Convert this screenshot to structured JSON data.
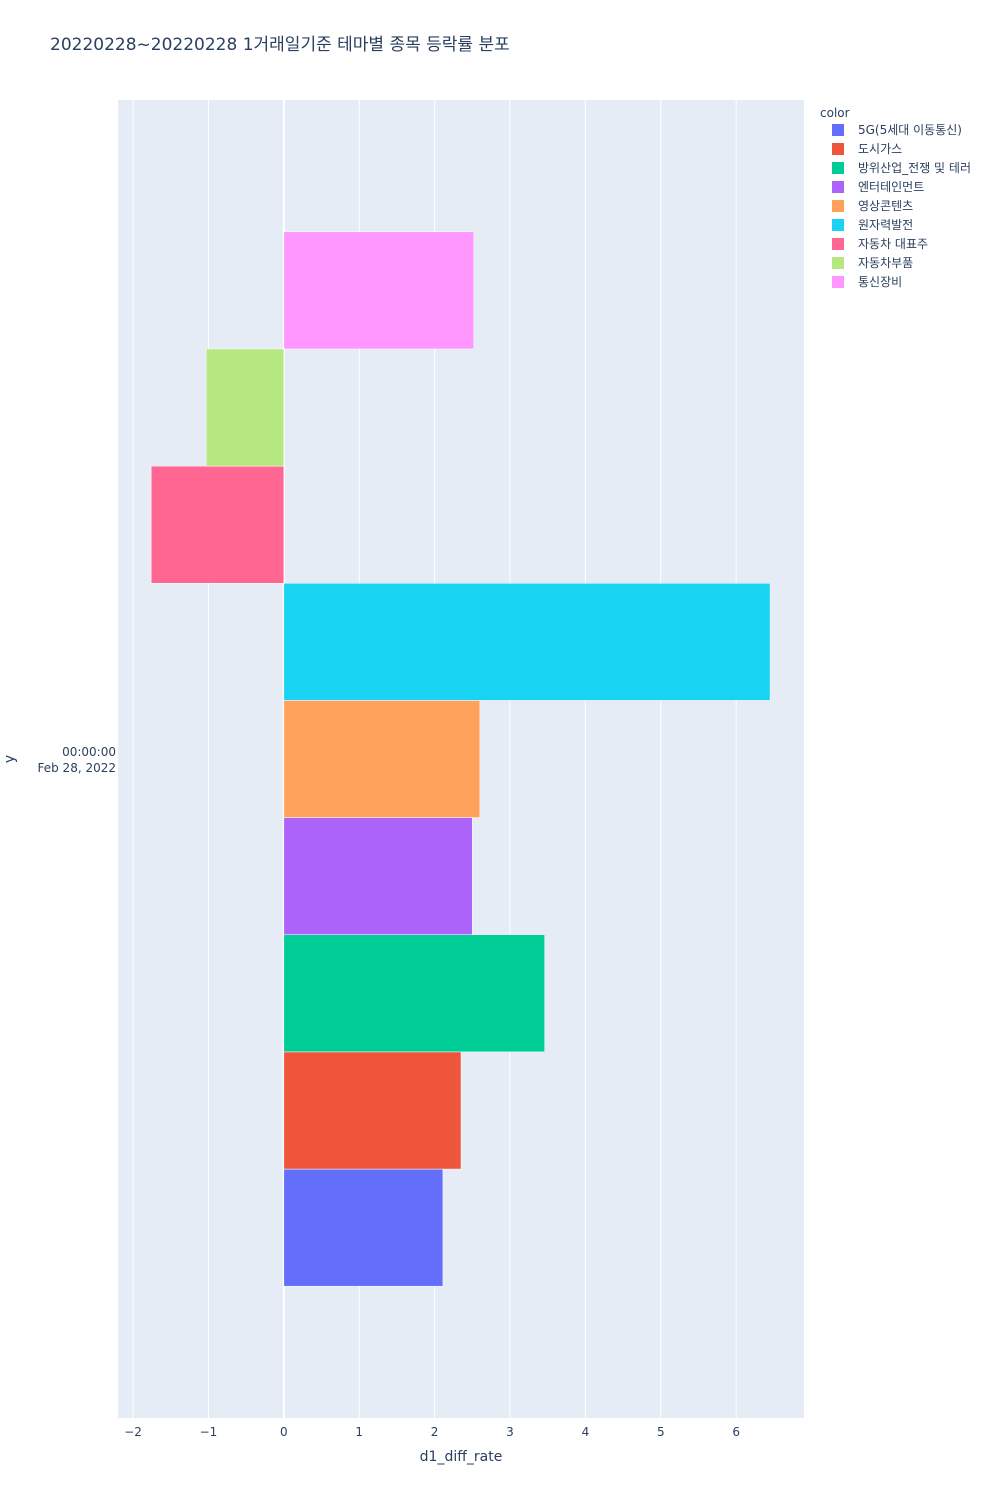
{
  "chart_data": {
    "type": "bar",
    "orientation": "horizontal",
    "barmode": "group",
    "title": "20220228~20220228 1거래일기준 테마별 종목 등락률 분포",
    "xlabel": "d1_diff_rate",
    "ylabel": "y",
    "xlim": [
      -2.2,
      6.9
    ],
    "x_ticks": [
      "−2",
      "−1",
      "0",
      "1",
      "2",
      "3",
      "4",
      "5",
      "6"
    ],
    "y_category_lines": [
      "00:00:00",
      "Feb 28, 2022"
    ],
    "grid": true,
    "legend": {
      "title": "color",
      "placement": "top-right"
    },
    "series": [
      {
        "name": "5G(5세대 이동통신)",
        "value": 2.11,
        "color": "#636efa"
      },
      {
        "name": "도시가스",
        "value": 2.35,
        "color": "#EF553B"
      },
      {
        "name": "방위산업_전쟁 및 테러",
        "value": 3.46,
        "color": "#00cc96"
      },
      {
        "name": "엔터테인먼트",
        "value": 2.5,
        "color": "#ab63fa"
      },
      {
        "name": "영상콘텐츠",
        "value": 2.6,
        "color": "#FFA15A"
      },
      {
        "name": "원자력발전",
        "value": 6.45,
        "color": "#19d3f3"
      },
      {
        "name": "자동차 대표주",
        "value": -1.76,
        "color": "#FF6692"
      },
      {
        "name": "자동차부품",
        "value": -1.03,
        "color": "#B6E880"
      },
      {
        "name": "통신장비",
        "value": 2.52,
        "color": "#FF97FF"
      }
    ]
  }
}
